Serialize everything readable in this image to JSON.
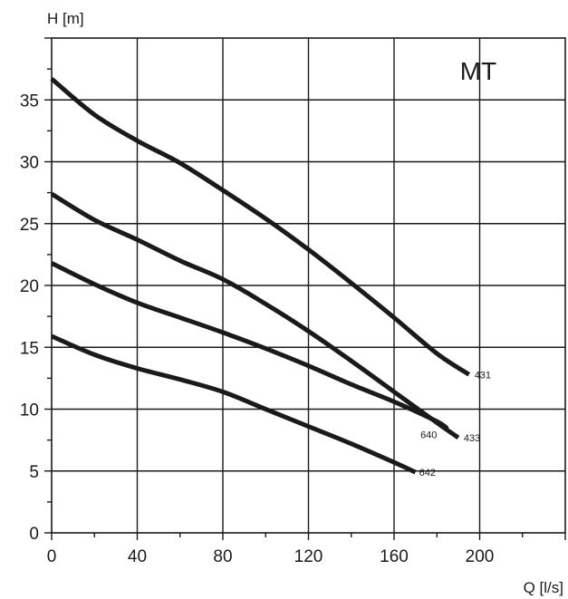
{
  "chart_data": {
    "type": "line",
    "title": "MT",
    "ylabel": "H [m]",
    "xlabel": "Q [l/s]",
    "xlim": [
      0,
      240
    ],
    "ylim": [
      0,
      40
    ],
    "xticks": [
      0,
      40,
      80,
      120,
      160,
      200
    ],
    "yticks": [
      0,
      5,
      10,
      15,
      20,
      25,
      30,
      35
    ],
    "grid": true,
    "series": [
      {
        "name": "431",
        "x": [
          0,
          20,
          40,
          60,
          80,
          100,
          120,
          140,
          160,
          180,
          195
        ],
        "y": [
          36.7,
          33.8,
          31.7,
          29.9,
          27.7,
          25.4,
          22.9,
          20.2,
          17.4,
          14.5,
          12.8
        ]
      },
      {
        "name": "433",
        "x": [
          0,
          20,
          40,
          60,
          80,
          100,
          120,
          140,
          160,
          180,
          190
        ],
        "y": [
          27.4,
          25.3,
          23.7,
          22.0,
          20.5,
          18.5,
          16.3,
          13.9,
          11.4,
          8.9,
          7.7
        ]
      },
      {
        "name": "640",
        "x": [
          0,
          20,
          40,
          60,
          80,
          100,
          120,
          140,
          160,
          180,
          185
        ],
        "y": [
          21.8,
          20.1,
          18.6,
          17.4,
          16.2,
          14.9,
          13.5,
          12.0,
          10.6,
          9.0,
          8.4
        ]
      },
      {
        "name": "642",
        "x": [
          0,
          20,
          40,
          60,
          80,
          100,
          120,
          140,
          160,
          170
        ],
        "y": [
          15.9,
          14.4,
          13.3,
          12.4,
          11.4,
          10.0,
          8.6,
          7.2,
          5.7,
          4.9
        ]
      }
    ]
  }
}
